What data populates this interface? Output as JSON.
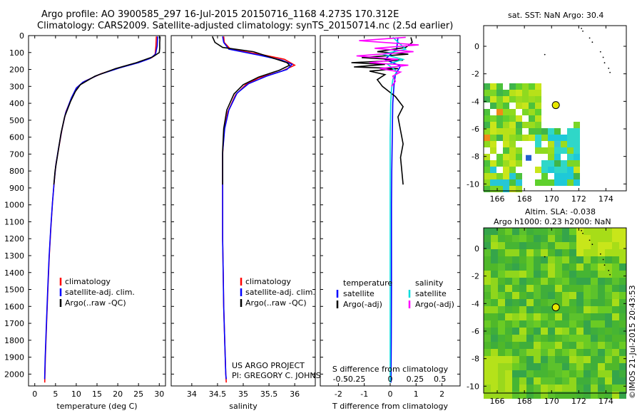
{
  "header": {
    "line1": "Argo profile: AO 3900585_297 16-Jul-2015 20150716_1168 4.273S 170.312E",
    "line2": "Climatology: CARS2009. Satellite-adjusted climatology: synTS_20150714.nc (2.5d earlier)"
  },
  "maps": {
    "sst_title": "sat. SST: NaN Argo: 30.4",
    "sla_title_1": "Altim. SLA: -0.038",
    "sla_title_2": "Argo h1000: 0.23 h2000: NaN",
    "credit": "©IMOS 21-Jul-2015 20:43:53",
    "xticks": [
      166,
      168,
      170,
      172,
      174
    ],
    "xlim": [
      165,
      175.5
    ],
    "sst_yticks": [
      0,
      -2,
      -4,
      -6,
      -8,
      -10
    ],
    "sla_yticks": [
      0,
      -2,
      -4,
      -6,
      -8,
      -10
    ],
    "ylim": [
      -10.5,
      1.5
    ],
    "argo_position": {
      "lon": 170.312,
      "lat": -4.273
    },
    "colors": {
      "marker": "#e8e800",
      "sla_base": "#55c02a",
      "sst_base": "#5fd02d"
    }
  },
  "chart_data": [
    {
      "id": "temperature",
      "type": "line",
      "xlabel": "temperature (deg C)",
      "ylabel": "",
      "xlim": [
        -1.5,
        31.5
      ],
      "ylim": [
        2070,
        0
      ],
      "xticks": [
        0,
        5,
        10,
        15,
        20,
        25,
        30
      ],
      "yticks": [
        0,
        100,
        200,
        300,
        400,
        500,
        600,
        700,
        800,
        900,
        1000,
        1100,
        1200,
        1300,
        1400,
        1500,
        1600,
        1700,
        1800,
        1900,
        2000
      ],
      "legend": [
        "climatology",
        "satellite-adj. clim.",
        "Argo(..raw -QC)"
      ],
      "series": [
        {
          "name": "climatology",
          "color": "#ff0000",
          "points": [
            [
              29.3,
              5
            ],
            [
              29.2,
              60
            ],
            [
              29,
              110
            ],
            [
              28.2,
              130
            ],
            [
              25.5,
              155
            ],
            [
              21,
              185
            ],
            [
              16,
              225
            ],
            [
              12,
              270
            ],
            [
              10.2,
              305
            ],
            [
              9,
              360
            ],
            [
              7.5,
              450
            ],
            [
              6.6,
              550
            ],
            [
              5.8,
              660
            ],
            [
              5.1,
              760
            ],
            [
              4.7,
              860
            ],
            [
              4.3,
              980
            ],
            [
              3.9,
              1130
            ],
            [
              3.5,
              1300
            ],
            [
              3.15,
              1500
            ],
            [
              2.85,
              1700
            ],
            [
              2.55,
              1900
            ],
            [
              2.4,
              2050
            ]
          ]
        },
        {
          "name": "satellite-adj. clim.",
          "color": "#0000ff",
          "points": [
            [
              29.6,
              5
            ],
            [
              29.5,
              60
            ],
            [
              29.1,
              110
            ],
            [
              27.8,
              135
            ],
            [
              25,
              160
            ],
            [
              20.5,
              190
            ],
            [
              15.5,
              230
            ],
            [
              11.6,
              275
            ],
            [
              10,
              310
            ],
            [
              8.8,
              370
            ],
            [
              7.4,
              460
            ],
            [
              6.5,
              560
            ],
            [
              5.7,
              670
            ],
            [
              5.05,
              770
            ],
            [
              4.65,
              870
            ],
            [
              4.25,
              990
            ],
            [
              3.85,
              1140
            ],
            [
              3.45,
              1310
            ],
            [
              3.1,
              1510
            ],
            [
              2.8,
              1710
            ],
            [
              2.5,
              1910
            ],
            [
              2.38,
              2030
            ]
          ]
        },
        {
          "name": "Argo(..raw -QC)",
          "color": "#000000",
          "points": [
            [
              30.2,
              5
            ],
            [
              30.1,
              40
            ],
            [
              30.1,
              75
            ],
            [
              30,
              100
            ],
            [
              28.5,
              125
            ],
            [
              24.5,
              160
            ],
            [
              19.5,
              195
            ],
            [
              14.5,
              240
            ],
            [
              11,
              290
            ],
            [
              9.8,
              330
            ],
            [
              8.6,
              390
            ],
            [
              7.2,
              480
            ],
            [
              6.3,
              580
            ],
            [
              5.6,
              690
            ],
            [
              4.9,
              800
            ],
            [
              4.6,
              880
            ]
          ]
        }
      ]
    },
    {
      "id": "salinity",
      "type": "line",
      "xlabel": "salinity",
      "ylabel": "",
      "xlim": [
        33.6,
        36.4
      ],
      "ylim": [
        2070,
        0
      ],
      "xticks": [
        34,
        34.5,
        35,
        35.5,
        36
      ],
      "legend": [
        "climatology",
        "satellite-adj. clim.",
        "Argo(..raw -QC)"
      ],
      "credit_1": "US ARGO PROJECT",
      "credit_2": "PI: GREGORY C. JOHNSON",
      "series": [
        {
          "name": "climatology",
          "color": "#ff0000",
          "points": [
            [
              34.62,
              5
            ],
            [
              34.63,
              40
            ],
            [
              34.75,
              80
            ],
            [
              35.4,
              115
            ],
            [
              35.8,
              140
            ],
            [
              36,
              175
            ],
            [
              35.75,
              210
            ],
            [
              35.3,
              250
            ],
            [
              35.05,
              290
            ],
            [
              34.85,
              350
            ],
            [
              34.7,
              450
            ],
            [
              34.63,
              560
            ],
            [
              34.6,
              700
            ],
            [
              34.6,
              820
            ],
            [
              34.6,
              900
            ],
            [
              34.6,
              1000
            ],
            [
              34.6,
              1200
            ],
            [
              34.61,
              1400
            ],
            [
              34.62,
              1600
            ],
            [
              34.64,
              1800
            ],
            [
              34.66,
              2000
            ],
            [
              34.67,
              2050
            ]
          ]
        },
        {
          "name": "satellite-adj. clim.",
          "color": "#0000ff",
          "points": [
            [
              34.6,
              5
            ],
            [
              34.62,
              40
            ],
            [
              34.72,
              80
            ],
            [
              35.3,
              115
            ],
            [
              35.75,
              145
            ],
            [
              35.95,
              170
            ],
            [
              35.85,
              200
            ],
            [
              35.45,
              240
            ],
            [
              35.1,
              285
            ],
            [
              34.88,
              340
            ],
            [
              34.72,
              440
            ],
            [
              34.64,
              550
            ],
            [
              34.6,
              690
            ],
            [
              34.6,
              810
            ],
            [
              34.6,
              900
            ],
            [
              34.6,
              1000
            ],
            [
              34.6,
              1200
            ],
            [
              34.61,
              1400
            ],
            [
              34.62,
              1600
            ],
            [
              34.64,
              1800
            ],
            [
              34.66,
              2000
            ],
            [
              34.67,
              2030
            ]
          ]
        },
        {
          "name": "Argo(..raw -QC)",
          "color": "#000000",
          "points": [
            [
              34.4,
              5
            ],
            [
              34.45,
              40
            ],
            [
              34.6,
              70
            ],
            [
              35.2,
              95
            ],
            [
              35.55,
              130
            ],
            [
              35.85,
              160
            ],
            [
              35.9,
              175
            ],
            [
              35.7,
              205
            ],
            [
              35.3,
              245
            ],
            [
              35.0,
              290
            ],
            [
              34.82,
              345
            ],
            [
              34.68,
              440
            ],
            [
              34.62,
              550
            ],
            [
              34.6,
              680
            ],
            [
              34.6,
              800
            ],
            [
              34.6,
              880
            ]
          ]
        }
      ]
    },
    {
      "id": "differences",
      "type": "line",
      "xlabel": "T difference from climatology",
      "xlabel_top": "S difference from climatology",
      "xlim": [
        -2.7,
        2.7
      ],
      "ylim": [
        2070,
        0
      ],
      "xticks": [
        -2,
        -1,
        0,
        1,
        2
      ],
      "top_ticks": [
        "-0.5",
        "-0.25",
        "0",
        "0.25",
        "0.5"
      ],
      "top_tick_values": [
        -1.92,
        -0.96,
        0,
        0.96,
        1.92
      ],
      "legend_temperature": [
        "temperature",
        "satellite",
        "Argo(-adj)"
      ],
      "legend_salinity": [
        "salinity",
        "satellite",
        "Argo(-adj)"
      ],
      "series": [
        {
          "name": "temperature satellite",
          "color": "#0000ff",
          "points": [
            [
              0.3,
              10
            ],
            [
              0.25,
              80
            ],
            [
              -0.2,
              140
            ],
            [
              0.4,
              180
            ],
            [
              0.2,
              230
            ],
            [
              0.15,
              290
            ],
            [
              0.1,
              400
            ],
            [
              0.08,
              600
            ],
            [
              0.06,
              800
            ],
            [
              0.05,
              1000
            ],
            [
              0.05,
              1200
            ],
            [
              0.05,
              1500
            ],
            [
              0.04,
              1800
            ],
            [
              0.03,
              2050
            ]
          ]
        },
        {
          "name": "temperature Argo(-adj)",
          "color": "#000000",
          "points": [
            [
              0.8,
              10
            ],
            [
              0.85,
              40
            ],
            [
              0.6,
              70
            ],
            [
              -0.5,
              95
            ],
            [
              0.7,
              110
            ],
            [
              -1.1,
              130
            ],
            [
              0.5,
              145
            ],
            [
              -1.5,
              160
            ],
            [
              -0.2,
              170
            ],
            [
              -1.4,
              185
            ],
            [
              0.3,
              195
            ],
            [
              -0.8,
              210
            ],
            [
              -0.2,
              230
            ],
            [
              -0.5,
              260
            ],
            [
              -0.3,
              300
            ],
            [
              0.2,
              360
            ],
            [
              0.5,
              420
            ],
            [
              0.3,
              480
            ],
            [
              0.4,
              560
            ],
            [
              0.5,
              640
            ],
            [
              0.4,
              720
            ],
            [
              0.45,
              800
            ],
            [
              0.5,
              880
            ]
          ]
        },
        {
          "name": "salinity satellite",
          "color": "#00dddd",
          "points": [
            [
              0.1,
              10
            ],
            [
              0.6,
              80
            ],
            [
              -0.3,
              110
            ],
            [
              0.5,
              140
            ],
            [
              -0.1,
              170
            ],
            [
              0.25,
              210
            ],
            [
              0.1,
              260
            ],
            [
              0.05,
              320
            ],
            [
              0.02,
              400
            ],
            [
              0,
              600
            ],
            [
              0,
              800
            ],
            [
              0,
              1000
            ],
            [
              0,
              1400
            ],
            [
              0,
              1800
            ],
            [
              0,
              2050
            ]
          ]
        },
        {
          "name": "salinity Argo(-adj)",
          "color": "#ff00ff",
          "points": [
            [
              0.6,
              10
            ],
            [
              -1.2,
              30
            ],
            [
              1.1,
              55
            ],
            [
              -0.6,
              75
            ],
            [
              0.9,
              95
            ],
            [
              -1.3,
              120
            ],
            [
              0.3,
              140
            ],
            [
              -0.8,
              160
            ],
            [
              0.7,
              175
            ],
            [
              -0.4,
              195
            ],
            [
              0.4,
              215
            ],
            [
              0.1,
              240
            ],
            [
              0.2,
              270
            ],
            [
              0.05,
              300
            ]
          ]
        }
      ]
    }
  ]
}
